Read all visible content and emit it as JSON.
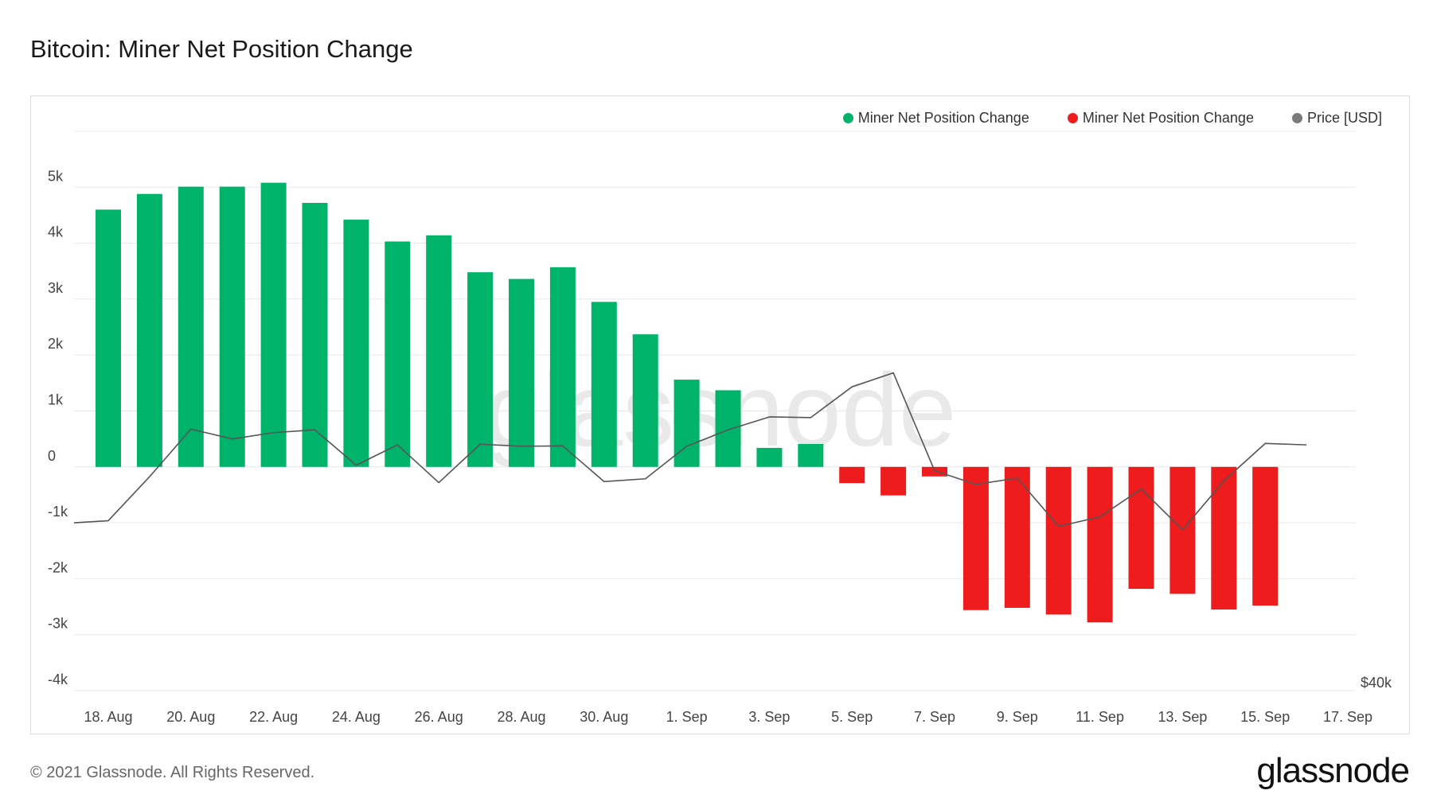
{
  "title": "Bitcoin: Miner Net Position Change",
  "legend": [
    {
      "label": "Miner Net Position Change",
      "color": "#00b36b"
    },
    {
      "label": "Miner Net Position Change",
      "color": "#ee1c1c"
    },
    {
      "label": "Price [USD]",
      "color": "#7a7a7a"
    }
  ],
  "watermark": "glassnode",
  "footer": {
    "copyright": "© 2021 Glassnode. All Rights Reserved.",
    "brand": "glassnode"
  },
  "colors": {
    "positive": "#00b36b",
    "negative": "#ee1c1c",
    "price": "#555555",
    "grid": "#e8e8e8"
  },
  "chart_data": {
    "type": "bar",
    "x": [
      "17 Aug",
      "18 Aug",
      "19 Aug",
      "20 Aug",
      "21 Aug",
      "22 Aug",
      "23 Aug",
      "24 Aug",
      "25 Aug",
      "26 Aug",
      "27 Aug",
      "28 Aug",
      "29 Aug",
      "30 Aug",
      "31 Aug",
      "1 Sep",
      "2 Sep",
      "3 Sep",
      "4 Sep",
      "5 Sep",
      "6 Sep",
      "7 Sep",
      "8 Sep",
      "9 Sep",
      "10 Sep",
      "11 Sep",
      "12 Sep",
      "13 Sep",
      "14 Sep",
      "15 Sep",
      "16 Sep",
      "17 Sep"
    ],
    "series": [
      {
        "name": "Miner Net Position Change",
        "type": "bar",
        "values": [
          null,
          4600,
          4880,
          5010,
          5010,
          5080,
          4720,
          4420,
          4030,
          4140,
          3480,
          3360,
          3570,
          2950,
          2370,
          1560,
          1370,
          340,
          410,
          -290,
          -510,
          -170,
          -2560,
          -2520,
          -2640,
          -2780,
          -2180,
          -2270,
          -2550,
          -2480,
          null,
          null
        ]
      },
      {
        "name": "Price [USD]",
        "type": "line",
        "values": [
          44800,
          44860,
          46120,
          47480,
          47200,
          47380,
          47460,
          46450,
          47030,
          45950,
          47050,
          46990,
          47000,
          45980,
          46060,
          46990,
          47460,
          47830,
          47810,
          48690,
          49090,
          46290,
          45900,
          46080,
          44700,
          44970,
          45770,
          44600,
          46000,
          47070,
          47030,
          null
        ]
      }
    ],
    "x_tick_labels": [
      "18. Aug",
      "20. Aug",
      "22. Aug",
      "24. Aug",
      "26. Aug",
      "28. Aug",
      "30. Aug",
      "1. Sep",
      "3. Sep",
      "5. Sep",
      "7. Sep",
      "9. Sep",
      "11. Sep",
      "13. Sep",
      "15. Sep",
      "17. Sep"
    ],
    "y_tick_labels": [
      "5k",
      "4k",
      "3k",
      "2k",
      "1k",
      "0",
      "-1k",
      "-2k",
      "-3k",
      "-4k"
    ],
    "y_right_tick_labels": [
      "$40k"
    ],
    "ylim": [
      -4000,
      6000
    ],
    "y2lim": [
      40000,
      56000
    ],
    "grid": true,
    "legend_position": "top-right"
  }
}
